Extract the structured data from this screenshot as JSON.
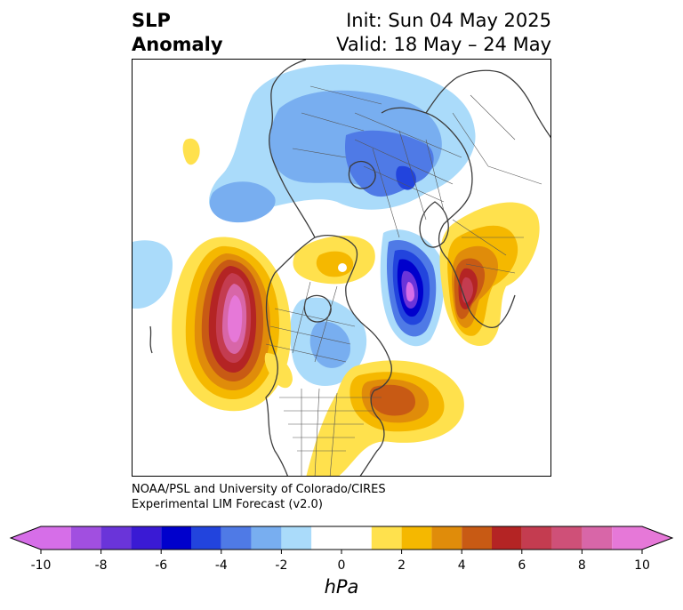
{
  "title": {
    "left_line1": "SLP",
    "left_line2": "Anomaly",
    "init": "Init: Sun 04 May 2025",
    "valid": "Valid: 18 May – 24 May"
  },
  "credit": {
    "line1": "NOAA/PSL and University of Colorado/CIRES",
    "line2": "Experimental LIM Forecast (v2.0)"
  },
  "colorbar": {
    "unit": "hPa",
    "bins": [
      -10,
      -9,
      -8,
      -7,
      -6,
      -5,
      -4,
      -3,
      -2,
      -1,
      1,
      2,
      3,
      4,
      5,
      6,
      7,
      8,
      9,
      10
    ],
    "colors": [
      "#d66ee8",
      "#a14fe0",
      "#6a34d9",
      "#3a1ad4",
      "#0000cc",
      "#2244dd",
      "#4f7ae6",
      "#78aef0",
      "#aadbfa",
      "#ffffff",
      "#ffe14d",
      "#f5b800",
      "#e08c0a",
      "#c85a14",
      "#b42424",
      "#c43c50",
      "#cf5078",
      "#d866a8",
      "#e678d8"
    ],
    "ticks": [
      {
        "value": -10,
        "label": "-10"
      },
      {
        "value": -8,
        "label": "-8"
      },
      {
        "value": -6,
        "label": "-6"
      },
      {
        "value": -4,
        "label": "-4"
      },
      {
        "value": -2,
        "label": "-2"
      },
      {
        "value": 0,
        "label": "0"
      },
      {
        "value": 2,
        "label": "2"
      },
      {
        "value": 4,
        "label": "4"
      },
      {
        "value": 6,
        "label": "6"
      },
      {
        "value": 8,
        "label": "8"
      },
      {
        "value": 10,
        "label": "10"
      }
    ]
  }
}
